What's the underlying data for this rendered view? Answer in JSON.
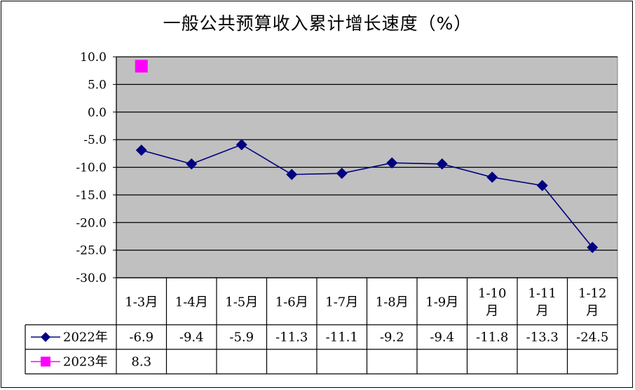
{
  "chart_data": {
    "type": "line",
    "title": "一般公共预算收入累计增长速度（%）",
    "categories": [
      [
        "1-3月"
      ],
      [
        "1-4月"
      ],
      [
        "1-5月"
      ],
      [
        "1-6月"
      ],
      [
        "1-7月"
      ],
      [
        "1-8月"
      ],
      [
        "1-9月"
      ],
      [
        "1-10",
        "月"
      ],
      [
        "1-11",
        "月"
      ],
      [
        "1-12",
        "月"
      ]
    ],
    "ylim": [
      -30,
      10
    ],
    "yticks": [
      "10.0",
      "5.0",
      "0.0",
      "-5.0",
      "-10.0",
      "-15.0",
      "-20.0",
      "-25.0",
      "-30.0"
    ],
    "ytick_values": [
      10,
      5,
      0,
      -5,
      -10,
      -15,
      -20,
      -25,
      -30
    ],
    "grid": true,
    "data_table": true,
    "series": [
      {
        "name": "2022年",
        "color": "#000080",
        "marker": "diamond",
        "values": [
          -6.9,
          -9.4,
          -5.9,
          -11.3,
          -11.1,
          -9.2,
          -9.4,
          -11.8,
          -13.3,
          -24.5
        ],
        "labels": [
          "-6.9",
          "-9.4",
          "-5.9",
          "-11.3",
          "-11.1",
          "-9.2",
          "-9.4",
          "-11.8",
          "-13.3",
          "-24.5"
        ]
      },
      {
        "name": "2023年",
        "color": "#ff00ff",
        "marker": "square",
        "values": [
          8.3,
          null,
          null,
          null,
          null,
          null,
          null,
          null,
          null,
          null
        ],
        "labels": [
          "8.3",
          "",
          "",
          "",
          "",
          "",
          "",
          "",
          "",
          ""
        ]
      }
    ]
  }
}
